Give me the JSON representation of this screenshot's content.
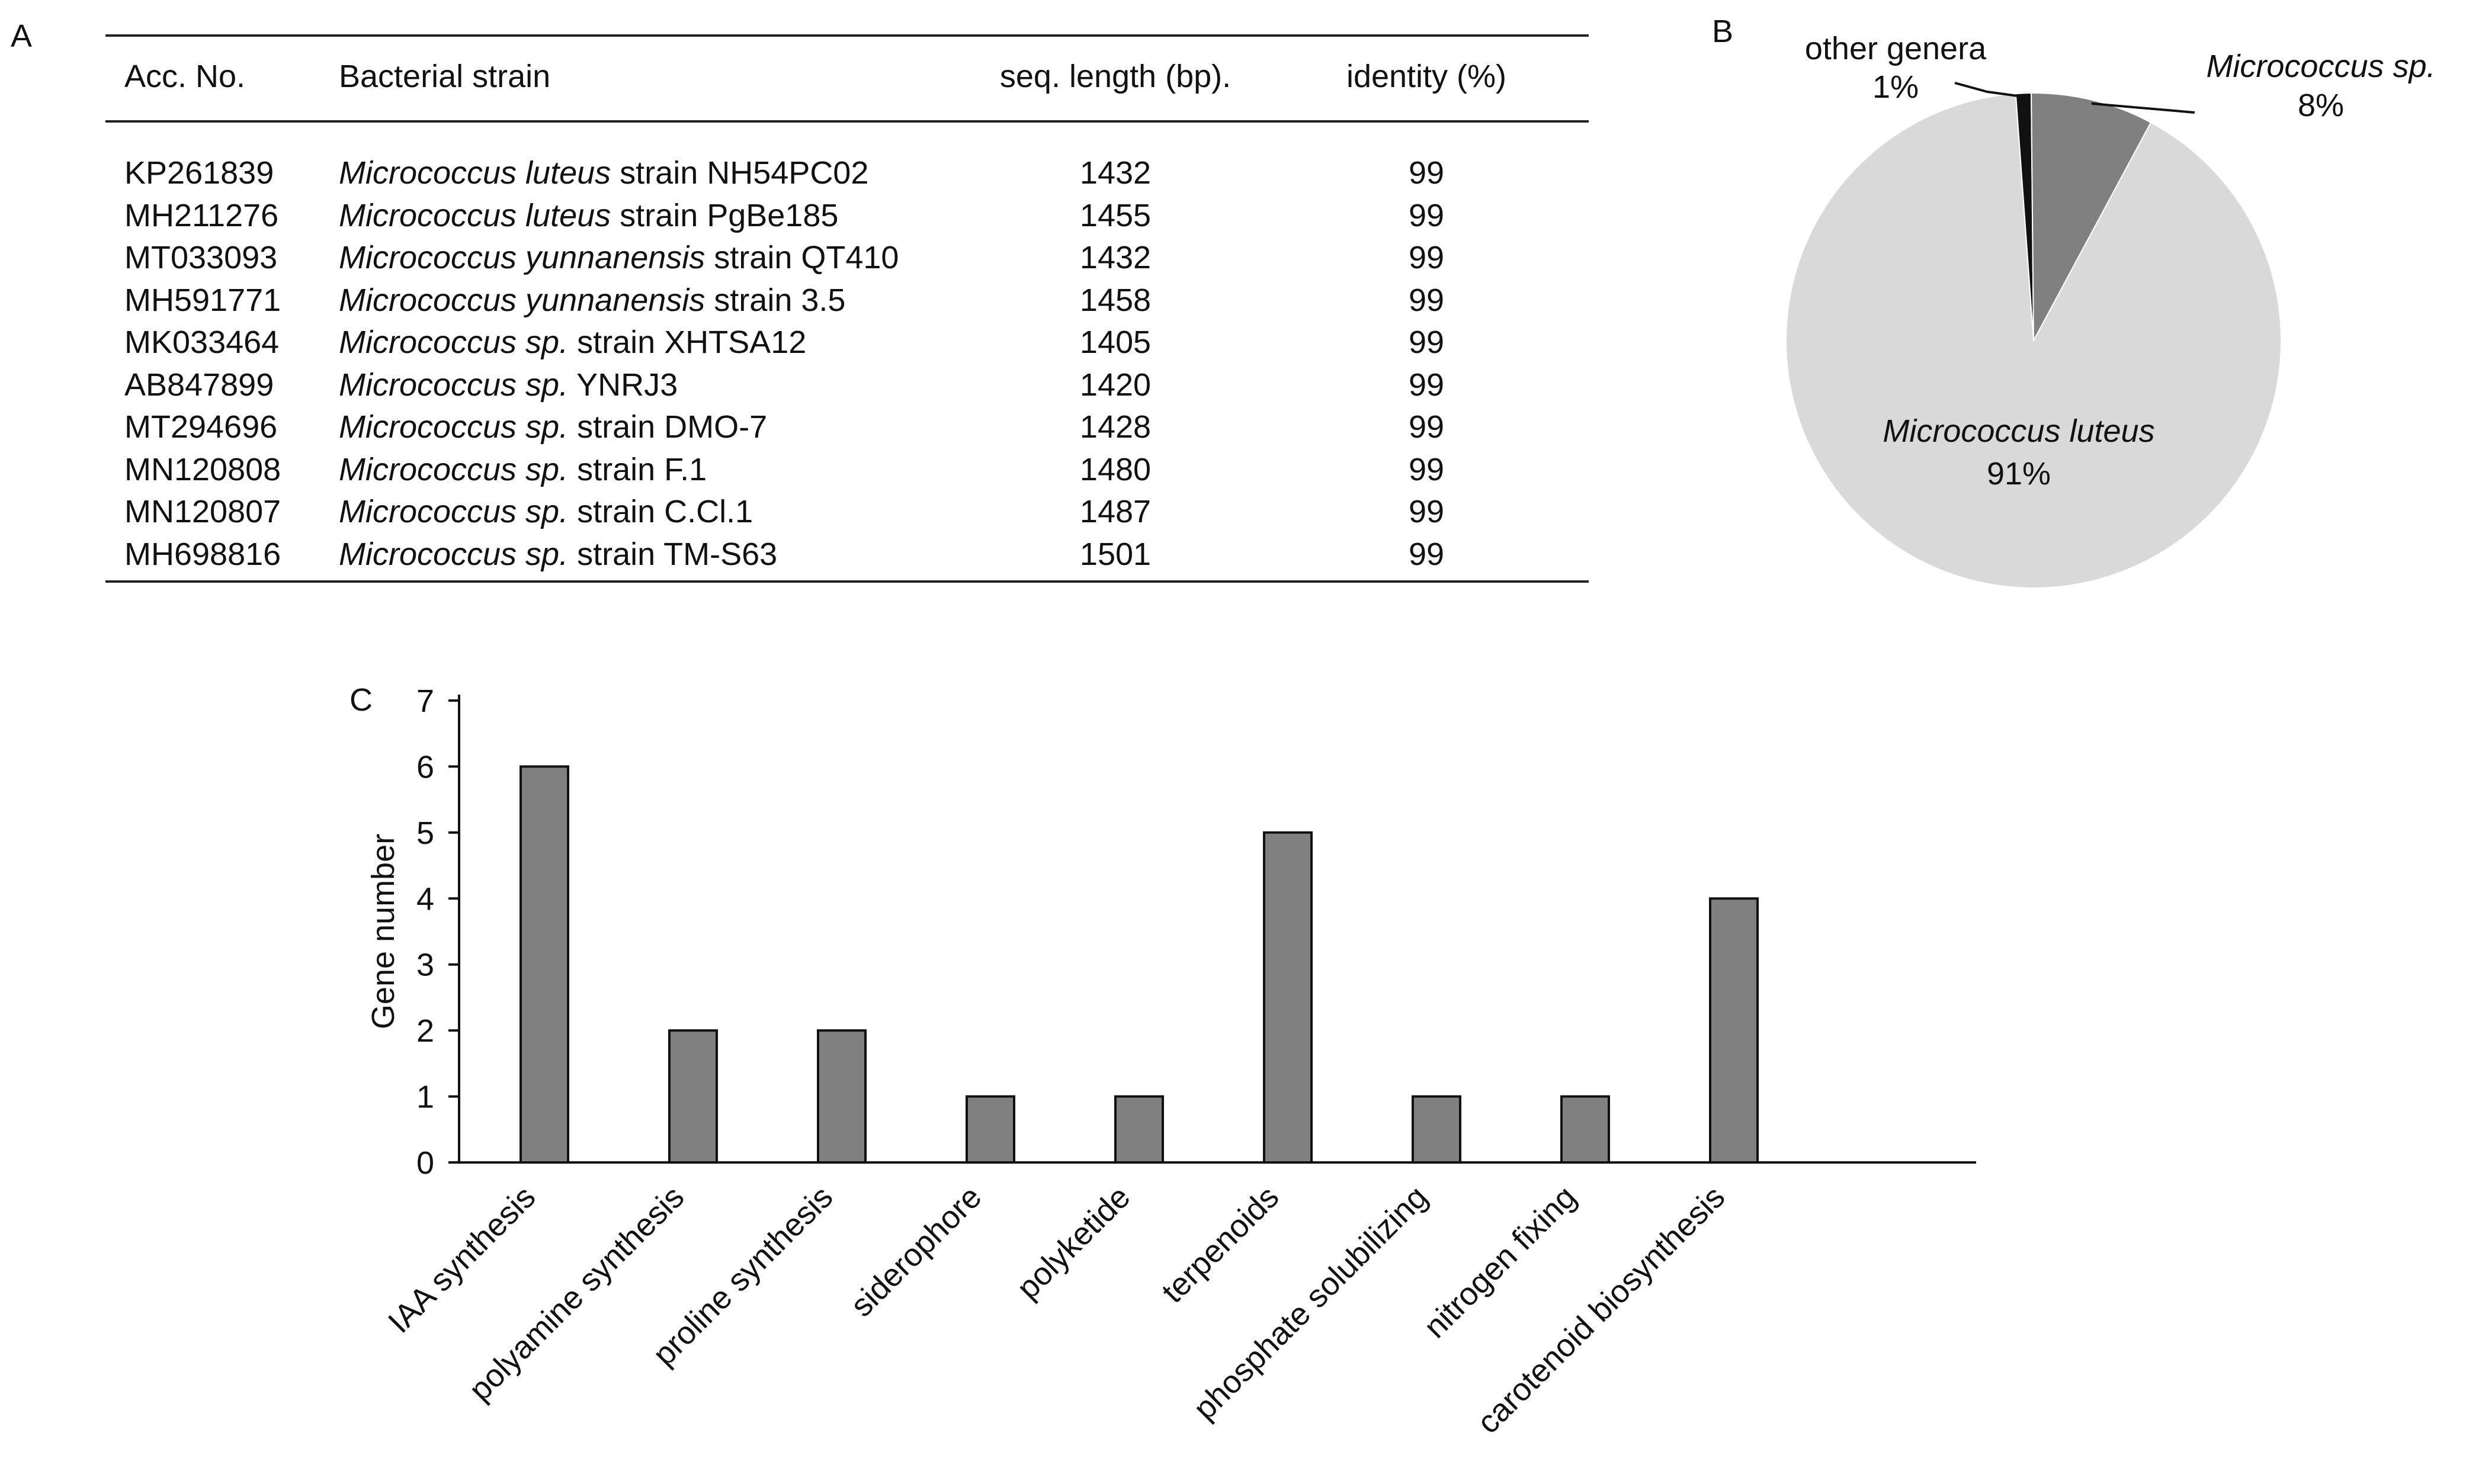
{
  "panel_labels": {
    "a": "A",
    "b": "B",
    "c": "C"
  },
  "table": {
    "headers": [
      "Acc. No.",
      "Bacterial strain",
      "seq. length (bp).",
      "identity (%)"
    ],
    "rows": [
      {
        "acc": "KP261839",
        "species": "Micrococcus luteus",
        "strain": " strain NH54PC02",
        "length": "1432",
        "identity": "99"
      },
      {
        "acc": "MH211276",
        "species": "Micrococcus luteus",
        "strain": " strain PgBe185",
        "length": "1455",
        "identity": "99"
      },
      {
        "acc": "MT033093",
        "species": "Micrococcus yunnanensis",
        "strain": " strain QT410",
        "length": "1432",
        "identity": "99"
      },
      {
        "acc": "MH591771",
        "species": "Micrococcus yunnanensis",
        "strain": " strain 3.5",
        "length": "1458",
        "identity": "99"
      },
      {
        "acc": "MK033464",
        "species": "Micrococcus sp.",
        "strain": " strain XHTSA12",
        "length": "1405",
        "identity": "99"
      },
      {
        "acc": "AB847899",
        "species": "Micrococcus sp.",
        "strain": " YNRJ3",
        "length": "1420",
        "identity": "99"
      },
      {
        "acc": "MT294696",
        "species": "Micrococcus sp.",
        "strain": " strain DMO-7",
        "length": "1428",
        "identity": "99"
      },
      {
        "acc": "MN120808",
        "species": "Micrococcus sp.",
        "strain": " strain F.1",
        "length": "1480",
        "identity": "99"
      },
      {
        "acc": "MN120807",
        "species": "Micrococcus sp.",
        "strain": " strain C.Cl.1",
        "length": "1487",
        "identity": "99"
      },
      {
        "acc": "MH698816",
        "species": "Micrococcus sp.",
        "strain": " strain TM-S63",
        "length": "1501",
        "identity": "99"
      }
    ]
  },
  "chart_data": [
    {
      "type": "pie",
      "panel": "B",
      "slices": [
        {
          "label": "Micrococcus luteus",
          "value": 91,
          "value_label": "91%",
          "color": "#d9d9d9",
          "italic": true
        },
        {
          "label": "other genera",
          "value": 1,
          "value_label": "1%",
          "color": "#111111",
          "italic": false
        },
        {
          "label": "Micrococcus sp.",
          "value": 8,
          "value_label": "8%",
          "color": "#808080",
          "italic": true
        }
      ]
    },
    {
      "type": "bar",
      "panel": "C",
      "title": "",
      "xlabel": "",
      "ylabel": "Gene number",
      "ylim": [
        0,
        7
      ],
      "yticks": [
        0,
        1,
        2,
        3,
        4,
        5,
        6,
        7
      ],
      "categories": [
        "IAA synthesis",
        "polyamine synthesis",
        "proline synthesis",
        "siderophore",
        "polyketide",
        "terpenoids",
        "phosphate solubilizing",
        "nitrogen fixing",
        "carotenoid biosynthesis"
      ],
      "values": [
        6,
        2,
        2,
        1,
        1,
        5,
        1,
        1,
        4
      ],
      "bar_color": "#808080"
    }
  ]
}
